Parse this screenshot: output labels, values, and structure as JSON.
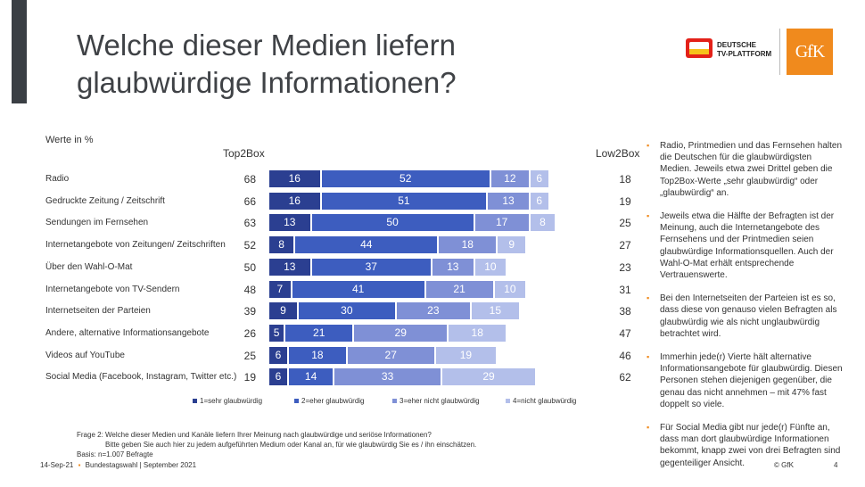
{
  "header": {
    "title_line1": "Welche dieser Medien liefern",
    "title_line2": "glaubwürdige Informationen?"
  },
  "logos": {
    "dtp_line1": "DEUTSCHE",
    "dtp_line2": "TV-PLATTFORM",
    "gfk": "GfK"
  },
  "chart_data": {
    "type": "bar",
    "subtitle": "Werte in %",
    "left_header": "Top2Box",
    "right_header": "Low2Box",
    "categories": [
      "Radio",
      "Gedruckte Zeitung / Zeitschrift",
      "Sendungen im Fernsehen",
      "Internetangebote von Zeitungen/ Zeitschriften",
      "Über den Wahl-O-Mat",
      "Internetangebote von TV-Sendern",
      "Internetseiten der Parteien",
      "Andere, alternative Informationsangebote",
      "Videos auf YouTube",
      "Social Media (Facebook, Instagram, Twitter etc.)"
    ],
    "top2box": [
      68,
      66,
      63,
      52,
      50,
      48,
      39,
      26,
      25,
      19
    ],
    "low2box": [
      18,
      19,
      25,
      27,
      23,
      31,
      38,
      47,
      46,
      62
    ],
    "series": [
      {
        "name": "1=sehr glaubwürdig",
        "color": "#2b3f91",
        "values": [
          16,
          16,
          13,
          8,
          13,
          7,
          9,
          5,
          6,
          6
        ]
      },
      {
        "name": "2=eher glaubwürdig",
        "color": "#3d5dbf",
        "values": [
          52,
          51,
          50,
          44,
          37,
          41,
          30,
          21,
          18,
          14
        ]
      },
      {
        "name": "3=eher nicht glaubwürdig",
        "color": "#7f90d6",
        "values": [
          12,
          13,
          17,
          18,
          13,
          21,
          23,
          29,
          27,
          33
        ]
      },
      {
        "name": "4=nicht glaubwürdig",
        "color": "#b3bfea",
        "values": [
          6,
          6,
          8,
          9,
          10,
          10,
          15,
          18,
          19,
          29
        ]
      }
    ],
    "xlim": [
      0,
      100
    ]
  },
  "notes": [
    "Radio, Printmedien und das Fernsehen halten die Deutschen für die glaubwürdigsten Medien. Jeweils etwa zwei Drittel geben die Top2Box-Werte „sehr glaubwürdig“ oder „glaubwürdig“ an.",
    "Jeweils etwa die Hälfte der Befragten ist der Meinung, auch die Internetangebote des Fernsehens und der Printmedien seien glaubwürdige Informationsquellen. Auch der Wahl-O-Mat erhält entsprechende Vertrauenswerte.",
    "Bei den Internetseiten der Parteien ist es so, dass diese von genauso vielen Befragten als glaubwürdig wie als nicht unglaubwürdig betrachtet wird.",
    "Immerhin jede(r) Vierte hält alternative Informationsangebote für glaubwürdig. Diesen Personen stehen diejenigen gegenüber, die genau das nicht annehmen – mit 47% fast doppelt so viele.",
    "Für  Social Media gibt nur jede(r) Fünfte an, dass man dort glaubwürdige Informationen bekommt, knapp zwei von drei Befragten sind gegenteiliger Ansicht."
  ],
  "footnote": {
    "line1": "Frage 2: Welche dieser Medien und Kanäle liefern Ihrer Meinung nach glaubwürdige und seriöse Informationen?",
    "line2": "Bitte geben Sie auch hier zu jedem aufgeführten Medium oder Kanal an, für wie glaubwürdig Sie es / ihn einschätzen.",
    "line3": "Basis: n=1.007 Befragte"
  },
  "footer": {
    "date": "14-Sep-21",
    "event": "Bundestagswahl | September 2021",
    "copyright": "© GfK",
    "page": "4"
  },
  "bullet_icon": "square-bullet-icon"
}
